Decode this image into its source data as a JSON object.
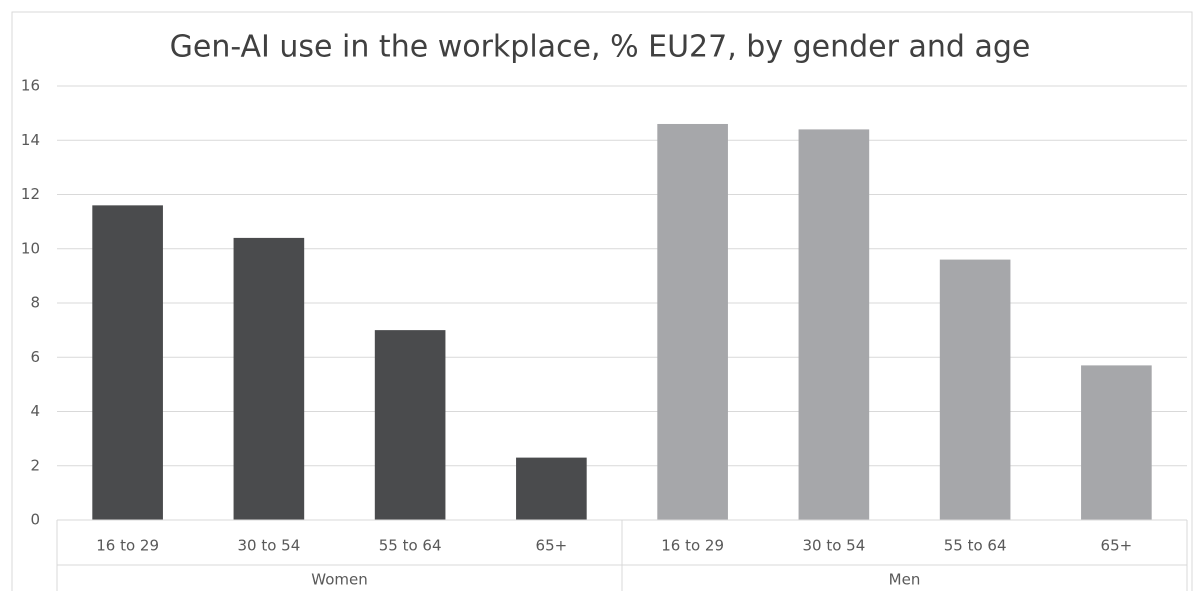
{
  "chart_data": {
    "type": "bar",
    "title": "Gen-AI use in the workplace, % EU27, by gender and age",
    "groups": [
      {
        "name": "Women",
        "color": "#4a4b4d",
        "categories": [
          "16 to 29",
          "30 to 54",
          "55 to 64",
          "65+"
        ],
        "values": [
          11.6,
          10.4,
          7.0,
          2.3
        ]
      },
      {
        "name": "Men",
        "color": "#a6a7aa",
        "categories": [
          "16 to 29",
          "30 to 54",
          "55 to 64",
          "65+"
        ],
        "values": [
          14.6,
          14.4,
          9.6,
          5.7
        ]
      }
    ],
    "ylim": [
      0,
      16
    ],
    "yticks": [
      0,
      2,
      4,
      6,
      8,
      10,
      12,
      14,
      16
    ],
    "grid": true
  }
}
